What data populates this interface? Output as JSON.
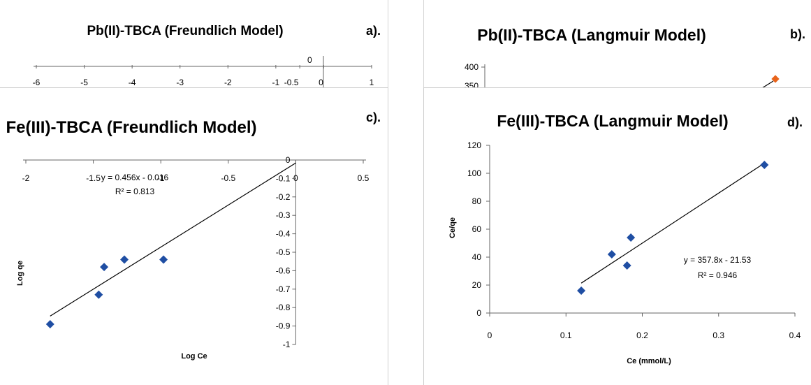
{
  "chart_data": [
    {
      "id": "a",
      "type": "scatter",
      "title": "Pb(II)-TBCA (Freundlich Model)",
      "panel_label": "a).",
      "xlim": [
        -6,
        1
      ],
      "x_ticks": [
        "-6",
        "-5",
        "-4",
        "-3",
        "-2",
        "-1",
        "-0.5",
        "0",
        "1"
      ],
      "y_ticks": [
        "0"
      ],
      "grid": false,
      "note": "partially visible (cropped by panel c)"
    },
    {
      "id": "b",
      "type": "scatter",
      "title": "Pb(II)-TBCA (Langmuir Model)",
      "panel_label": "b).",
      "y_ticks": [
        "400",
        "350"
      ],
      "series": [
        {
          "marker_color": "#e8641b",
          "x": [
            0.37
          ],
          "y": [
            398
          ]
        }
      ],
      "grid": false
    },
    {
      "id": "c",
      "type": "scatter",
      "title": "Fe(III)-TBCA (Freundlich Model)",
      "panel_label": "c).",
      "xlabel": "Log Ce",
      "ylabel": "Log qe",
      "xlim": [
        -2,
        0.5
      ],
      "ylim": [
        -1,
        0
      ],
      "x_ticks": [
        "-2",
        "-1.5",
        "-1",
        "-0.5",
        "0",
        "0.5"
      ],
      "y_ticks": [
        "0",
        "-0.1",
        "-0.2",
        "-0.3",
        "-0.4",
        "-0.5",
        "-0.6",
        "-0.7",
        "-0.8",
        "-0.9",
        "-1"
      ],
      "series": [
        {
          "marker_color": "#1f4ea3",
          "x": [
            -1.82,
            -1.46,
            -1.42,
            -1.27,
            -0.98
          ],
          "y": [
            -0.89,
            -0.73,
            -0.58,
            -0.54,
            -0.54
          ]
        }
      ],
      "trendline": {
        "slope": 0.456,
        "intercept": -0.016,
        "x_range": [
          -1.82,
          0
        ],
        "equation": "y = 0.456x - 0.016",
        "r2": "R² = 0.813"
      },
      "grid": false
    },
    {
      "id": "d",
      "type": "scatter",
      "title": "Fe(III)-TBCA (Langmuir Model)",
      "panel_label": "d).",
      "xlabel": "Ce (mmol/L)",
      "ylabel": "Ce/qe",
      "xlim": [
        0,
        0.4
      ],
      "ylim": [
        0,
        120
      ],
      "x_ticks": [
        "0",
        "0.1",
        "0.2",
        "0.3",
        "0.4"
      ],
      "y_ticks": [
        "0",
        "20",
        "40",
        "60",
        "80",
        "100",
        "120"
      ],
      "series": [
        {
          "marker_color": "#1f4ea3",
          "x": [
            0.12,
            0.16,
            0.18,
            0.185,
            0.36
          ],
          "y": [
            16,
            42,
            34,
            54,
            106
          ]
        }
      ],
      "trendline": {
        "slope": 357.8,
        "intercept": -21.53,
        "x_range": [
          0.12,
          0.36
        ],
        "equation": "y = 357.8x - 21.53",
        "r2": "R² = 0.946"
      },
      "grid": false
    }
  ]
}
